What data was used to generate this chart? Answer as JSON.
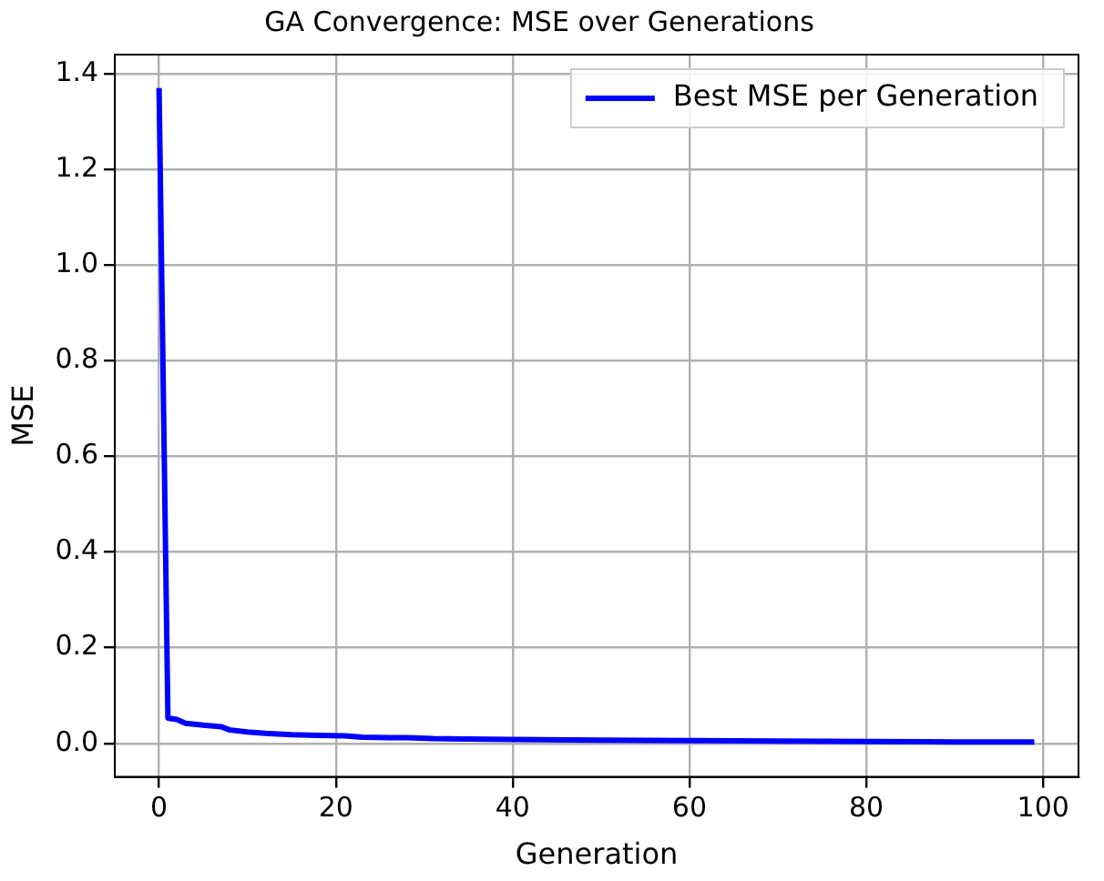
{
  "chart_data": {
    "type": "line",
    "title": "GA Convergence: MSE over Generations",
    "xlabel": "Generation",
    "ylabel": "MSE",
    "series": [
      {
        "name": "Best MSE per Generation",
        "color": "#0000ff",
        "x": [
          0,
          1,
          2,
          3,
          5,
          7,
          8,
          10,
          12,
          15,
          18,
          21,
          23,
          26,
          28,
          31,
          35,
          40,
          50,
          60,
          70,
          80,
          90,
          99
        ],
        "values": [
          1.37,
          0.053,
          0.05,
          0.042,
          0.038,
          0.035,
          0.028,
          0.024,
          0.021,
          0.018,
          0.017,
          0.016,
          0.013,
          0.012,
          0.012,
          0.01,
          0.009,
          0.008,
          0.007,
          0.006,
          0.005,
          0.004,
          0.003,
          0.003
        ]
      }
    ],
    "xlim": [
      -5,
      104
    ],
    "ylim": [
      -0.07,
      1.44
    ],
    "xticks": [
      0,
      20,
      40,
      60,
      80,
      100
    ],
    "yticks": [
      {
        "value": 0,
        "label": "0.0"
      },
      0.2,
      0.4,
      0.6,
      0.8,
      {
        "value": 1,
        "label": "1.0"
      },
      1.2,
      1.4
    ],
    "grid": true,
    "legend": "top right",
    "marker": "none",
    "line_style": "solid"
  }
}
